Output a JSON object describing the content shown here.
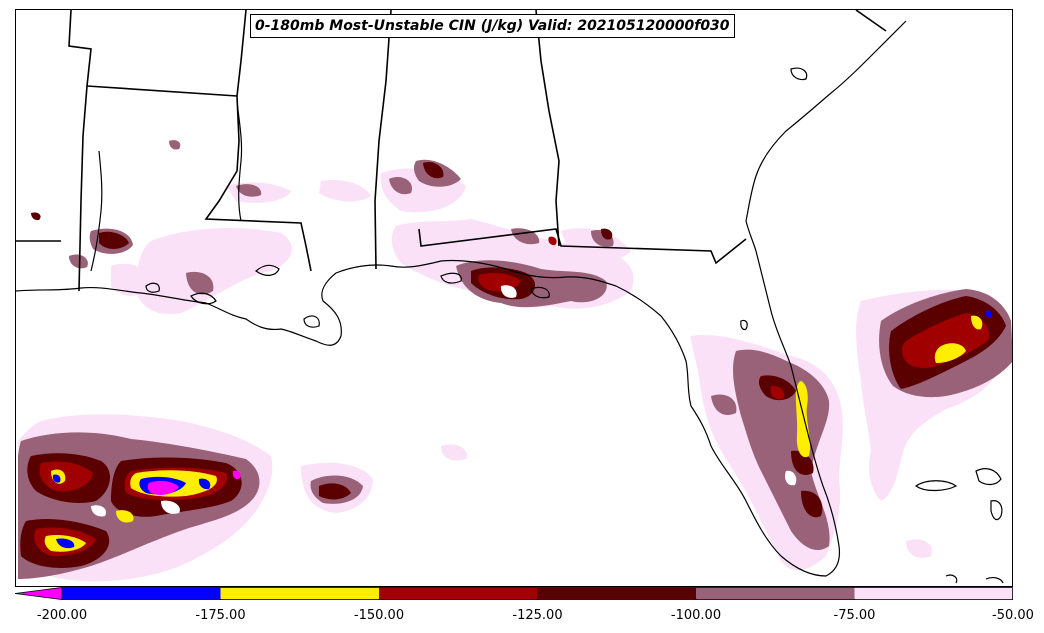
{
  "title": "0-180mb Most-Unstable CIN (J/kg) Valid: 202105120000f030",
  "colorbar": {
    "min": -200,
    "max": -50,
    "extend": "min",
    "under_color": "#ff00ff",
    "bins": [
      {
        "from": -200,
        "to": -175,
        "color": "#0000ff"
      },
      {
        "from": -175,
        "to": -150,
        "color": "#ffee00"
      },
      {
        "from": -150,
        "to": -125,
        "color": "#a00000"
      },
      {
        "from": -125,
        "to": -100,
        "color": "#5a0000"
      },
      {
        "from": -100,
        "to": -75,
        "color": "#9a6278"
      },
      {
        "from": -75,
        "to": -50,
        "color": "#fbe1f7"
      }
    ],
    "ticks": [
      "-200.00",
      "-175.00",
      "-150.00",
      "-125.00",
      "-100.00",
      "-75.00",
      "-50.00"
    ]
  }
}
